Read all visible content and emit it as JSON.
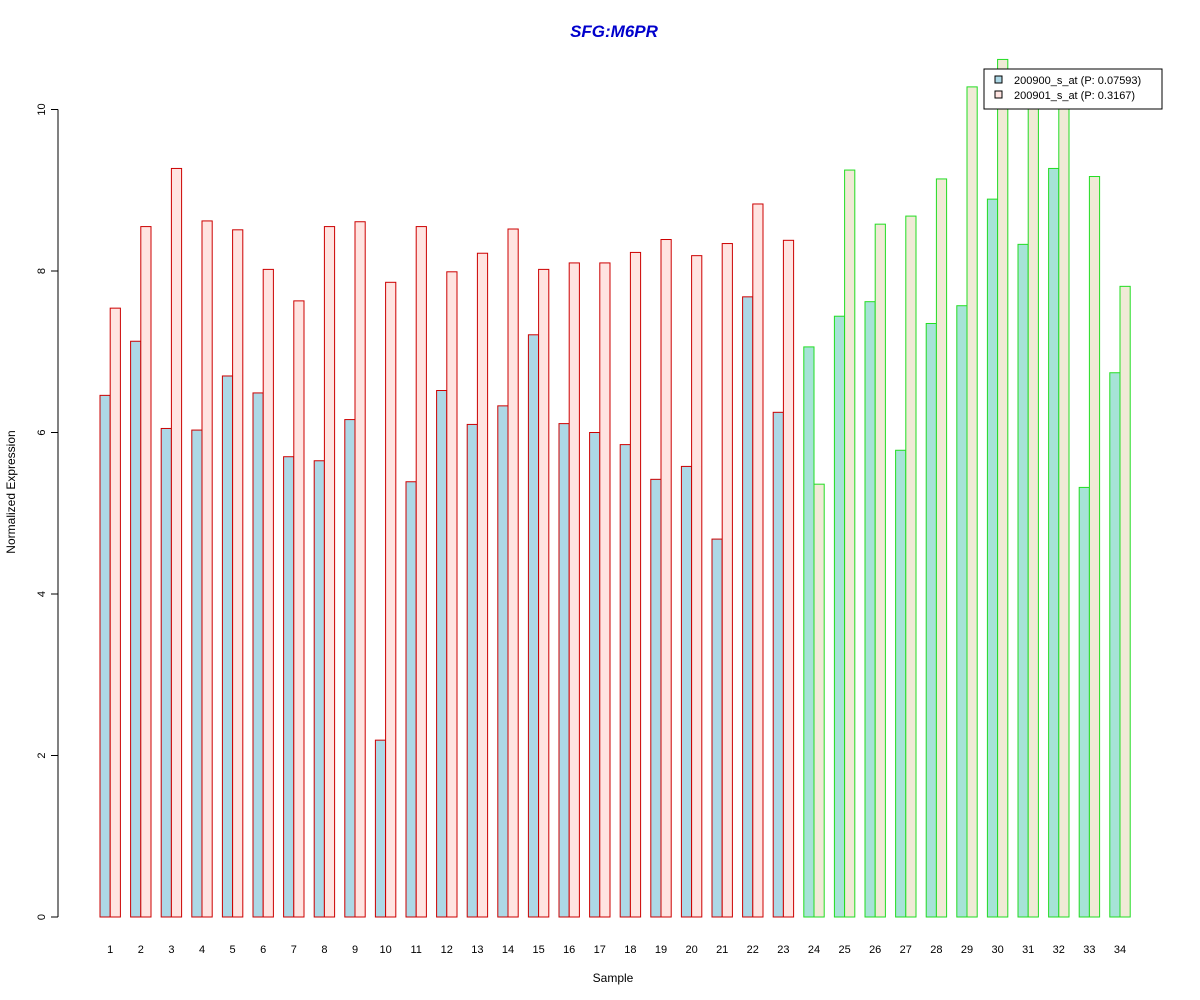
{
  "chart_data": {
    "type": "bar",
    "title": "SFG:M6PR",
    "xlabel": "Sample",
    "ylabel": "Normalized Expression",
    "ylim": [
      0,
      10.5
    ],
    "yticks": [
      0,
      2,
      4,
      6,
      8,
      10
    ],
    "categories": [
      "1",
      "2",
      "3",
      "4",
      "5",
      "6",
      "7",
      "8",
      "9",
      "10",
      "11",
      "12",
      "13",
      "14",
      "15",
      "16",
      "17",
      "18",
      "19",
      "20",
      "21",
      "22",
      "23",
      "24",
      "25",
      "26",
      "27",
      "28",
      "29",
      "30",
      "31",
      "32",
      "33",
      "34"
    ],
    "group1_count": 23,
    "series": [
      {
        "name": "200900_s_at (P: 0.07593)",
        "values": [
          6.46,
          7.13,
          6.05,
          6.03,
          6.7,
          6.49,
          5.7,
          5.65,
          6.16,
          2.19,
          5.39,
          6.52,
          6.1,
          6.33,
          7.21,
          6.11,
          6.0,
          5.85,
          5.42,
          5.58,
          4.68,
          7.68,
          6.25,
          7.06,
          7.44,
          7.62,
          5.78,
          7.35,
          7.57,
          8.89,
          8.33,
          9.27,
          5.32,
          6.74
        ]
      },
      {
        "name": "200901_s_at (P: 0.3167)",
        "values": [
          7.54,
          8.55,
          9.27,
          8.62,
          8.51,
          8.02,
          7.63,
          8.55,
          8.61,
          7.86,
          8.55,
          7.99,
          8.22,
          8.52,
          8.02,
          8.1,
          8.1,
          8.23,
          8.39,
          8.19,
          8.34,
          8.83,
          8.38,
          5.36,
          9.25,
          8.58,
          8.68,
          9.14,
          10.28,
          10.62,
          10.02,
          10.12,
          9.17,
          7.81
        ]
      }
    ],
    "colors": {
      "title": "#0000cc",
      "group1_border": "#cc0000",
      "group2_border": "#22dd22",
      "group1_fill_s1": "#add8e6",
      "group1_fill_s2": "#ffe4e1",
      "group2_fill_s1": "#a6e3d7",
      "group2_fill_s2": "#f0ead6",
      "axis": "#000000"
    },
    "legend": {
      "position": "top-right",
      "fills": [
        "#add8e6",
        "#ffe4e1"
      ]
    },
    "grid": false
  }
}
